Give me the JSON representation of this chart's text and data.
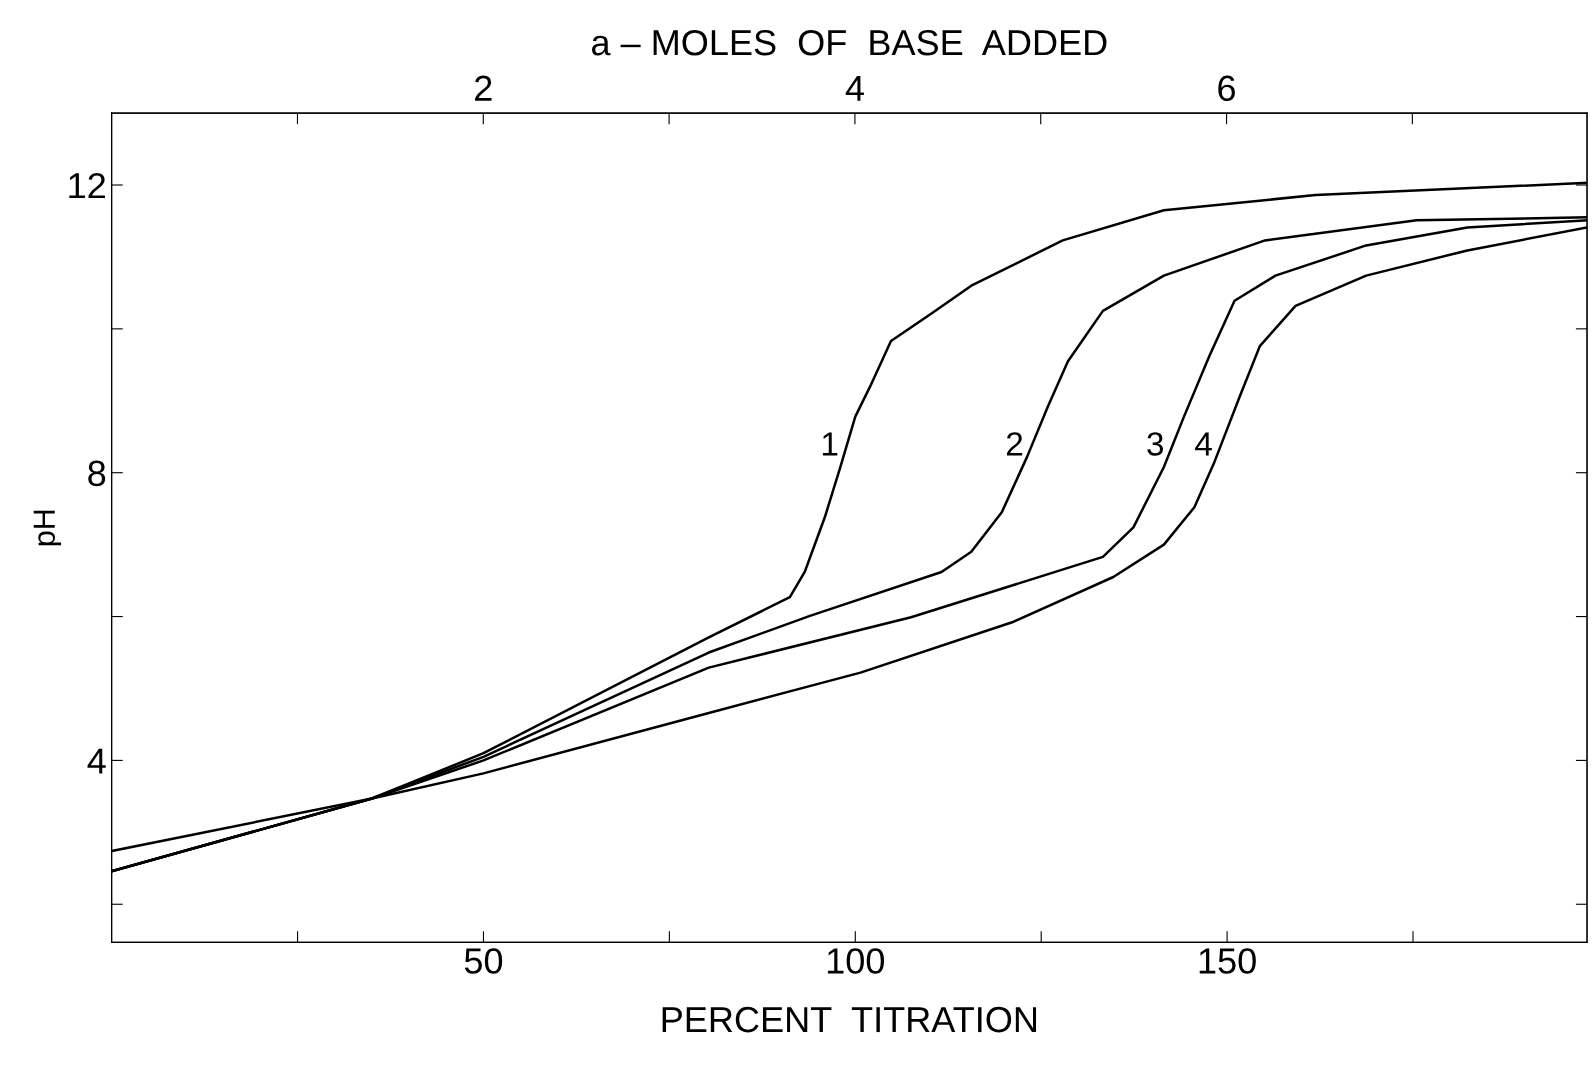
{
  "chart_data": {
    "type": "line",
    "xlabel": "PERCENT  TITRATION",
    "ylabel": "pH",
    "x2label": "a – MOLES  OF  BASE  ADDED",
    "xlim": [
      0,
      198.4
    ],
    "xticks": [
      {
        "value": 25,
        "label": null
      },
      50,
      {
        "value": 75,
        "label": null
      },
      100,
      {
        "value": 125,
        "label": null
      },
      150,
      {
        "value": 175,
        "label": null
      }
    ],
    "x2lim": [
      0,
      7.94
    ],
    "x2ticks": [
      {
        "value": 1,
        "label": null
      },
      2,
      {
        "value": 3,
        "label": null
      },
      4,
      {
        "value": 5,
        "label": null
      },
      6,
      {
        "value": 7,
        "label": null
      }
    ],
    "ylim": [
      1.47,
      13.0
    ],
    "yticks": [
      {
        "value": 2,
        "label": null
      },
      4,
      {
        "value": 6,
        "label": null
      },
      8,
      {
        "value": 10,
        "label": null
      },
      12
    ],
    "grid": false,
    "legend": false,
    "marker": "none",
    "line_style": "solid",
    "series": [
      {
        "name": "1",
        "color": "#000000",
        "x": [
          0,
          35,
          50,
          80.3,
          91.2,
          93.2,
          95.9,
          98,
          100,
          102,
          104.8,
          110.2,
          115.6,
          127.9,
          141.5,
          161.9,
          198.4
        ],
        "values": [
          2.46,
          3.47,
          4.1,
          5.71,
          6.27,
          6.62,
          7.38,
          8.08,
          8.78,
          9.2,
          9.83,
          10.21,
          10.6,
          11.23,
          11.65,
          11.86,
          12.03
        ]
      },
      {
        "name": "2",
        "color": "#000000",
        "x": [
          0,
          35,
          50,
          80.3,
          93.9,
          111.6,
          115.6,
          119.7,
          123.1,
          125.9,
          128.6,
          133.3,
          141.5,
          155.1,
          175.5,
          198.4
        ],
        "values": [
          2.46,
          3.47,
          4.05,
          5.5,
          6.01,
          6.62,
          6.9,
          7.45,
          8.22,
          8.92,
          9.55,
          10.25,
          10.74,
          11.23,
          11.51,
          11.55
        ]
      },
      {
        "name": "3",
        "color": "#000000",
        "x": [
          0,
          35,
          50,
          80.3,
          107.5,
          133.3,
          137.4,
          141.5,
          144.2,
          147.6,
          151,
          156.5,
          168.7,
          182.3,
          198.4
        ],
        "values": [
          2.46,
          3.47,
          4.0,
          5.29,
          5.99,
          6.83,
          7.24,
          8.08,
          8.78,
          9.62,
          10.39,
          10.74,
          11.16,
          11.41,
          11.51
        ]
      },
      {
        "name": "4",
        "color": "#000000",
        "x": [
          0,
          35,
          50,
          80.3,
          100.7,
          121.1,
          134.7,
          141.5,
          145.6,
          148.3,
          151.7,
          154.4,
          159.2,
          168.7,
          182.3,
          198.4
        ],
        "values": [
          2.74,
          3.47,
          3.82,
          4.66,
          5.22,
          5.92,
          6.55,
          7.0,
          7.52,
          8.15,
          9.06,
          9.76,
          10.32,
          10.74,
          11.09,
          11.41
        ]
      }
    ]
  }
}
